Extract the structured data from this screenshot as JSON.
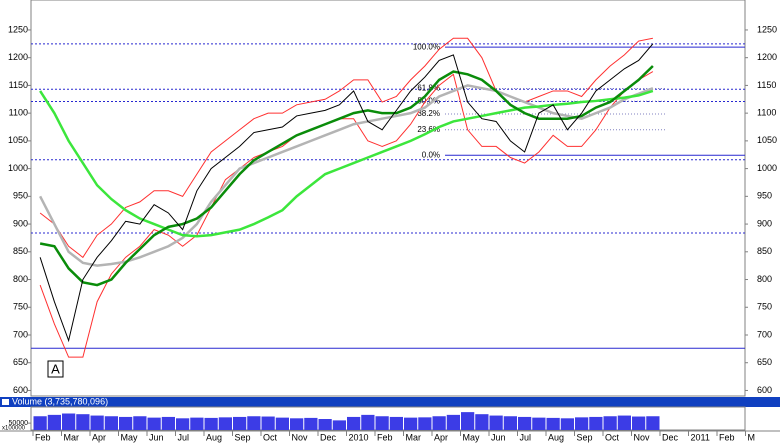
{
  "chart_data": {
    "type": "price",
    "categories": [
      "Feb",
      null,
      "Mar",
      null,
      "Apr",
      null,
      "May",
      null,
      "Jun",
      null,
      "Jul",
      null,
      "Aug",
      null,
      "Sep",
      null,
      "Oct",
      null,
      "Nov",
      null,
      "Dec",
      null,
      "2010",
      null,
      "Feb",
      null,
      "Mar",
      null,
      "Apr",
      null,
      "May",
      null,
      "Jun",
      null,
      "Jul",
      null,
      "Aug",
      null,
      "Sep",
      null,
      "Oct",
      null,
      "Nov",
      null,
      "Dec",
      null,
      "2011",
      null,
      "Feb",
      null,
      "M",
      null
    ],
    "ylim": [
      590,
      1304
    ],
    "yticks": [
      600,
      650,
      700,
      750,
      800,
      850,
      900,
      950,
      1000,
      1050,
      1100,
      1150,
      1200,
      1250
    ],
    "series": [
      {
        "color": "#ff3030",
        "values": [
          920,
          900,
          860,
          840,
          880,
          900,
          930,
          940,
          960,
          960,
          950,
          990,
          1030,
          1050,
          1070,
          1090,
          1100,
          1100,
          1115,
          1120,
          1125,
          1140,
          1160,
          1160,
          1120,
          1130,
          1160,
          1185,
          1215,
          1235,
          1235,
          1200,
          1140,
          1130,
          1120,
          1130,
          1140,
          1140,
          1130,
          1160,
          1185,
          1205,
          1230,
          1235,
          null,
          null,
          null,
          null,
          null,
          null,
          null,
          null
        ]
      },
      {
        "color": "#ff3030",
        "values": [
          790,
          720,
          660,
          660,
          760,
          810,
          840,
          860,
          890,
          880,
          860,
          880,
          930,
          980,
          1000,
          1020,
          1030,
          1040,
          1060,
          1070,
          1080,
          1090,
          1090,
          1050,
          1040,
          1050,
          1080,
          1120,
          1150,
          1170,
          1070,
          1040,
          1040,
          1020,
          1010,
          1030,
          1060,
          1040,
          1040,
          1070,
          1110,
          1140,
          1160,
          1175,
          null,
          null,
          null,
          null,
          null,
          null,
          null,
          null
        ]
      },
      {
        "color": "#b4b4b4",
        "values": [
          950,
          900,
          850,
          830,
          825,
          828,
          832,
          840,
          850,
          860,
          875,
          900,
          940,
          970,
          1000,
          1010,
          1020,
          1030,
          1040,
          1050,
          1060,
          1070,
          1080,
          1085,
          1090,
          1095,
          1100,
          1110,
          1130,
          1140,
          1150,
          1145,
          1140,
          1130,
          1120,
          1110,
          1100,
          1095,
          1090,
          1100,
          1110,
          1125,
          1135,
          1145,
          null,
          null,
          null,
          null,
          null,
          null,
          null,
          null
        ]
      },
      {
        "color": "#3ce63c",
        "values": [
          1140,
          1100,
          1050,
          1010,
          970,
          945,
          925,
          910,
          900,
          890,
          880,
          878,
          880,
          885,
          890,
          900,
          912,
          925,
          950,
          970,
          990,
          1000,
          1010,
          1020,
          1030,
          1040,
          1050,
          1062,
          1075,
          1085,
          1090,
          1095,
          1100,
          1105,
          1110,
          1112,
          1115,
          1117,
          1120,
          1122,
          1125,
          1128,
          1132,
          1140,
          null,
          null,
          null,
          null,
          null,
          null,
          null,
          null
        ]
      },
      {
        "color": "#0a8c0a",
        "values": [
          865,
          860,
          820,
          795,
          790,
          800,
          830,
          855,
          880,
          895,
          900,
          910,
          930,
          960,
          990,
          1015,
          1030,
          1045,
          1060,
          1070,
          1080,
          1090,
          1100,
          1105,
          1100,
          1100,
          1110,
          1130,
          1160,
          1175,
          1170,
          1160,
          1140,
          1115,
          1100,
          1090,
          1090,
          1090,
          1095,
          1110,
          1120,
          1140,
          1160,
          1185,
          null,
          null,
          null,
          null,
          null,
          null,
          null,
          null
        ]
      },
      {
        "color": "#000000",
        "values": [
          840,
          760,
          690,
          800,
          840,
          870,
          905,
          900,
          935,
          920,
          890,
          960,
          1000,
          1020,
          1040,
          1065,
          1070,
          1075,
          1095,
          1100,
          1105,
          1115,
          1140,
          1085,
          1070,
          1105,
          1140,
          1165,
          1195,
          1205,
          1120,
          1090,
          1085,
          1050,
          1030,
          1100,
          1115,
          1070,
          1100,
          1140,
          1160,
          1180,
          1195,
          1225,
          null,
          null,
          null,
          null,
          null,
          null,
          null,
          null
        ]
      }
    ],
    "reference_lines": [
      {
        "value": 1225,
        "style": "dashed"
      },
      {
        "value": 1143,
        "style": "dashed"
      },
      {
        "value": 1121,
        "style": "dashed"
      },
      {
        "value": 1016,
        "style": "dashed"
      },
      {
        "value": 884,
        "style": "dashed"
      },
      {
        "value": 676,
        "style": "solid"
      }
    ],
    "fib_levels": [
      {
        "label": "100.0%",
        "price": 1219
      },
      {
        "label": "61.8%",
        "price": 1144.5
      },
      {
        "label": "50.0%",
        "price": 1121.5
      },
      {
        "label": "38.2%",
        "price": 1098.5
      },
      {
        "label": "23.6%",
        "price": 1070
      },
      {
        "label": "0.0%",
        "price": 1024
      }
    ],
    "annotations": [
      {
        "text": "A"
      }
    ],
    "volume": {
      "title": "Volume (3,735,780,096)",
      "color": "#3c3ce6",
      "ylim": [
        0,
        160000
      ],
      "yticks": [
        50000
      ],
      "unit_label": "x100000",
      "values": [
        100000,
        110000,
        120000,
        115000,
        105000,
        100000,
        95000,
        100000,
        90000,
        95000,
        85000,
        90000,
        88000,
        92000,
        95000,
        100000,
        98000,
        90000,
        85000,
        88000,
        80000,
        70000,
        95000,
        110000,
        100000,
        95000,
        90000,
        92000,
        100000,
        110000,
        130000,
        115000,
        105000,
        100000,
        95000,
        90000,
        88000,
        85000,
        92000,
        95000,
        100000,
        105000,
        98000,
        100000,
        null,
        null,
        null,
        null,
        null,
        null,
        null,
        null
      ]
    }
  }
}
